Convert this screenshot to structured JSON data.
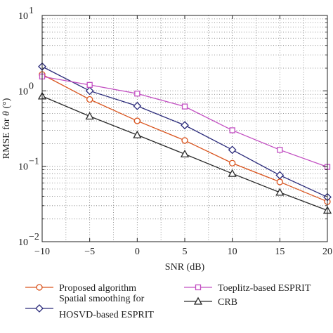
{
  "chart_data": {
    "type": "line",
    "x": [
      -10,
      -5,
      0,
      5,
      10,
      15,
      20
    ],
    "xlabel": "SNR (dB)",
    "ylabel_main": "RMSE for ",
    "ylabel_symbol": "θ",
    "ylabel_unit": " (°)",
    "xlim": [
      -10,
      20
    ],
    "ylim": [
      0.01,
      10
    ],
    "yscale": "log",
    "grid": true,
    "legend_position": "bottom",
    "xticks": [
      "−10",
      "−5",
      "0",
      "5",
      "10",
      "15",
      "20"
    ],
    "yticks": [
      {
        "base": "10",
        "exp": "1",
        "value": 10
      },
      {
        "base": "10",
        "exp": "0",
        "value": 1
      },
      {
        "base": "10",
        "exp": "−1",
        "value": 0.1
      },
      {
        "base": "10",
        "exp": "−2",
        "value": 0.01
      }
    ],
    "series": [
      {
        "name": "Proposed algorithm",
        "color": "#d9541e",
        "marker": "circle",
        "values": [
          1.65,
          0.77,
          0.4,
          0.22,
          0.11,
          0.062,
          0.034
        ]
      },
      {
        "name": "Spatial smoothing for HOSVD-based ESPRIT",
        "name_lines": [
          "Spatial smoothing for",
          "HOSVD-based ESPRIT"
        ],
        "color": "#2a2a7a",
        "marker": "diamond",
        "values": [
          2.1,
          1.0,
          0.63,
          0.35,
          0.165,
          0.076,
          0.039
        ]
      },
      {
        "name": "Toeplitz-based ESPRIT",
        "color": "#c24fc2",
        "marker": "square",
        "values": [
          1.55,
          1.2,
          0.92,
          0.62,
          0.3,
          0.165,
          0.098
        ]
      },
      {
        "name": "CRB",
        "color": "#2a2a2a",
        "marker": "triangle",
        "values": [
          0.85,
          0.46,
          0.26,
          0.145,
          0.08,
          0.045,
          0.026
        ]
      }
    ]
  }
}
